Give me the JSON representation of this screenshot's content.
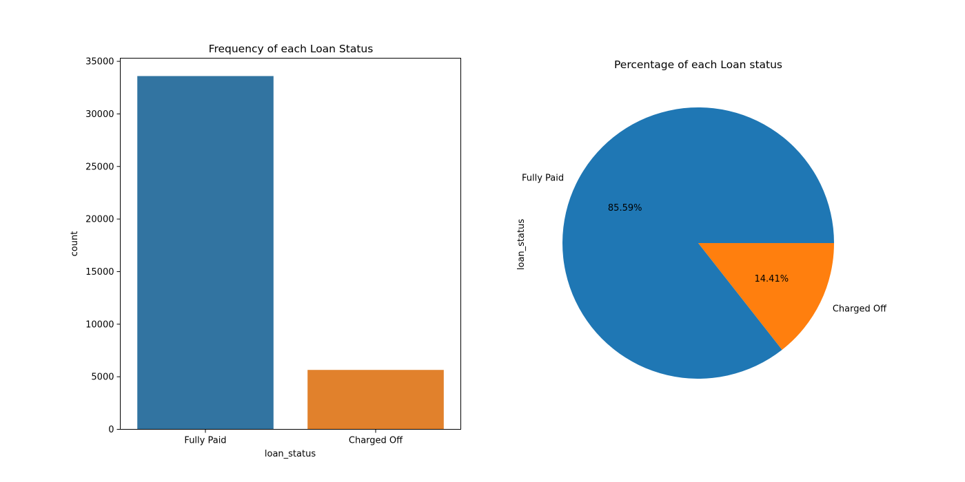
{
  "chart_data": [
    {
      "type": "bar",
      "title": "Frequency of each Loan Status",
      "xlabel": "loan_status",
      "ylabel": "count",
      "categories": [
        "Fully Paid",
        "Charged Off"
      ],
      "values": [
        33600,
        5650
      ],
      "ylim": [
        0,
        35300
      ],
      "yticks": [
        0,
        5000,
        10000,
        15000,
        20000,
        25000,
        30000,
        35000
      ],
      "ytick_labels": [
        "0",
        "5000",
        "10000",
        "15000",
        "20000",
        "25000",
        "30000",
        "35000"
      ],
      "colors": [
        "#3274a1",
        "#e1812c"
      ],
      "grid": false,
      "legend": "none"
    },
    {
      "type": "pie",
      "title": "Percentage of each Loan status",
      "ylabel": "loan_status",
      "labels": [
        "Fully Paid",
        "Charged Off"
      ],
      "values": [
        85.59,
        14.41
      ],
      "percent_labels": [
        "85.59%",
        "14.41%"
      ],
      "colors": [
        "#1f77b4",
        "#ff7f0e"
      ],
      "start_angle": 0,
      "direction": "counterclockwise",
      "legend": "none"
    }
  ]
}
